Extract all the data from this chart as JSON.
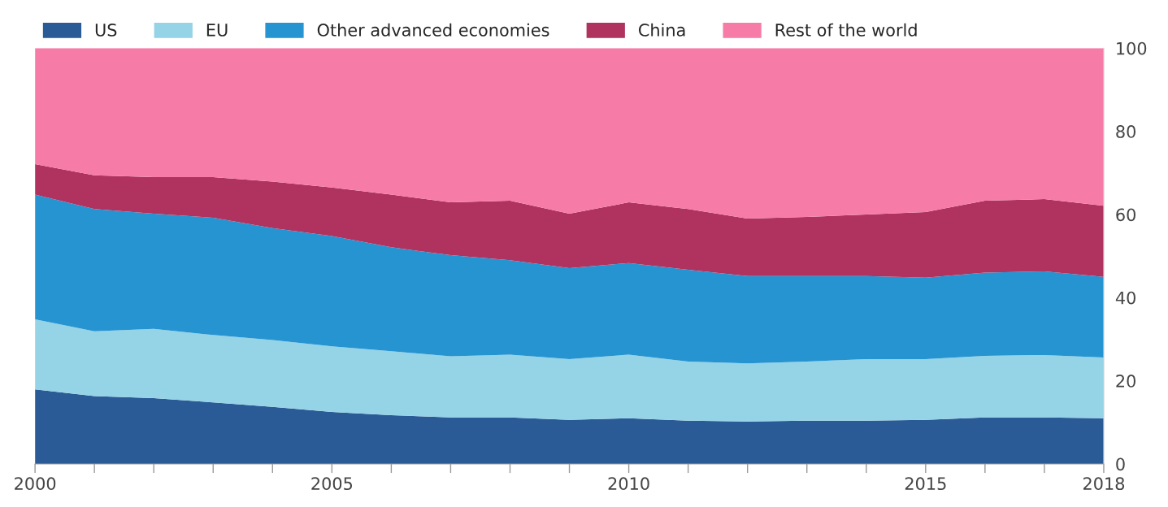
{
  "chart_data": {
    "type": "area",
    "stacked": true,
    "x": [
      2000,
      2001,
      2002,
      2003,
      2004,
      2005,
      2006,
      2007,
      2008,
      2009,
      2010,
      2011,
      2012,
      2013,
      2014,
      2015,
      2016,
      2017,
      2018
    ],
    "series": [
      {
        "name": "US",
        "color": "#2a5b96",
        "values": [
          17.9,
          16.3,
          15.8,
          14.8,
          13.7,
          12.5,
          11.7,
          11.2,
          11.2,
          10.6,
          11.0,
          10.4,
          10.2,
          10.4,
          10.4,
          10.6,
          11.2,
          11.2,
          11.0
        ]
      },
      {
        "name": "EU",
        "color": "#95d3e6",
        "values": [
          16.9,
          15.6,
          16.7,
          16.2,
          16.1,
          15.8,
          15.4,
          14.7,
          15.1,
          14.6,
          15.3,
          14.2,
          14.0,
          14.2,
          14.8,
          14.6,
          14.8,
          15.0,
          14.6
        ]
      },
      {
        "name": "Other advanced economies",
        "color": "#2794d2",
        "values": [
          30.0,
          29.4,
          27.7,
          28.2,
          26.9,
          26.5,
          25.0,
          24.3,
          22.7,
          21.9,
          22.0,
          22.1,
          21.0,
          20.6,
          20.0,
          19.6,
          20.0,
          20.1,
          19.4
        ]
      },
      {
        "name": "China",
        "color": "#b0325f",
        "values": [
          7.3,
          8.1,
          8.8,
          9.8,
          11.2,
          11.7,
          12.7,
          12.7,
          14.3,
          13.1,
          14.6,
          14.6,
          13.8,
          14.2,
          14.8,
          15.8,
          17.3,
          17.4,
          17.1
        ]
      },
      {
        "name": "Rest of the world",
        "color": "#f77ba7",
        "values": [
          27.9,
          30.6,
          31.0,
          31.0,
          32.1,
          33.5,
          35.2,
          37.1,
          36.7,
          39.8,
          37.1,
          38.7,
          41.0,
          40.6,
          40.0,
          39.4,
          36.7,
          36.3,
          37.9
        ]
      }
    ],
    "xlim": [
      2000,
      2018
    ],
    "xticks": [
      2000,
      {
        "value": 2001,
        "label": null
      },
      {
        "value": 2002,
        "label": null
      },
      {
        "value": 2003,
        "label": null
      },
      {
        "value": 2004,
        "label": null
      },
      2005,
      {
        "value": 2006,
        "label": null
      },
      {
        "value": 2007,
        "label": null
      },
      {
        "value": 2008,
        "label": null
      },
      {
        "value": 2009,
        "label": null
      },
      2010,
      {
        "value": 2011,
        "label": null
      },
      {
        "value": 2012,
        "label": null
      },
      {
        "value": 2013,
        "label": null
      },
      {
        "value": 2014,
        "label": null
      },
      2015,
      {
        "value": 2016,
        "label": null
      },
      {
        "value": 2017,
        "label": null
      },
      2018
    ],
    "ylim": [
      0,
      100
    ],
    "yticks": [
      0,
      20,
      40,
      60,
      80,
      100
    ],
    "grid": false,
    "legend": "top"
  }
}
